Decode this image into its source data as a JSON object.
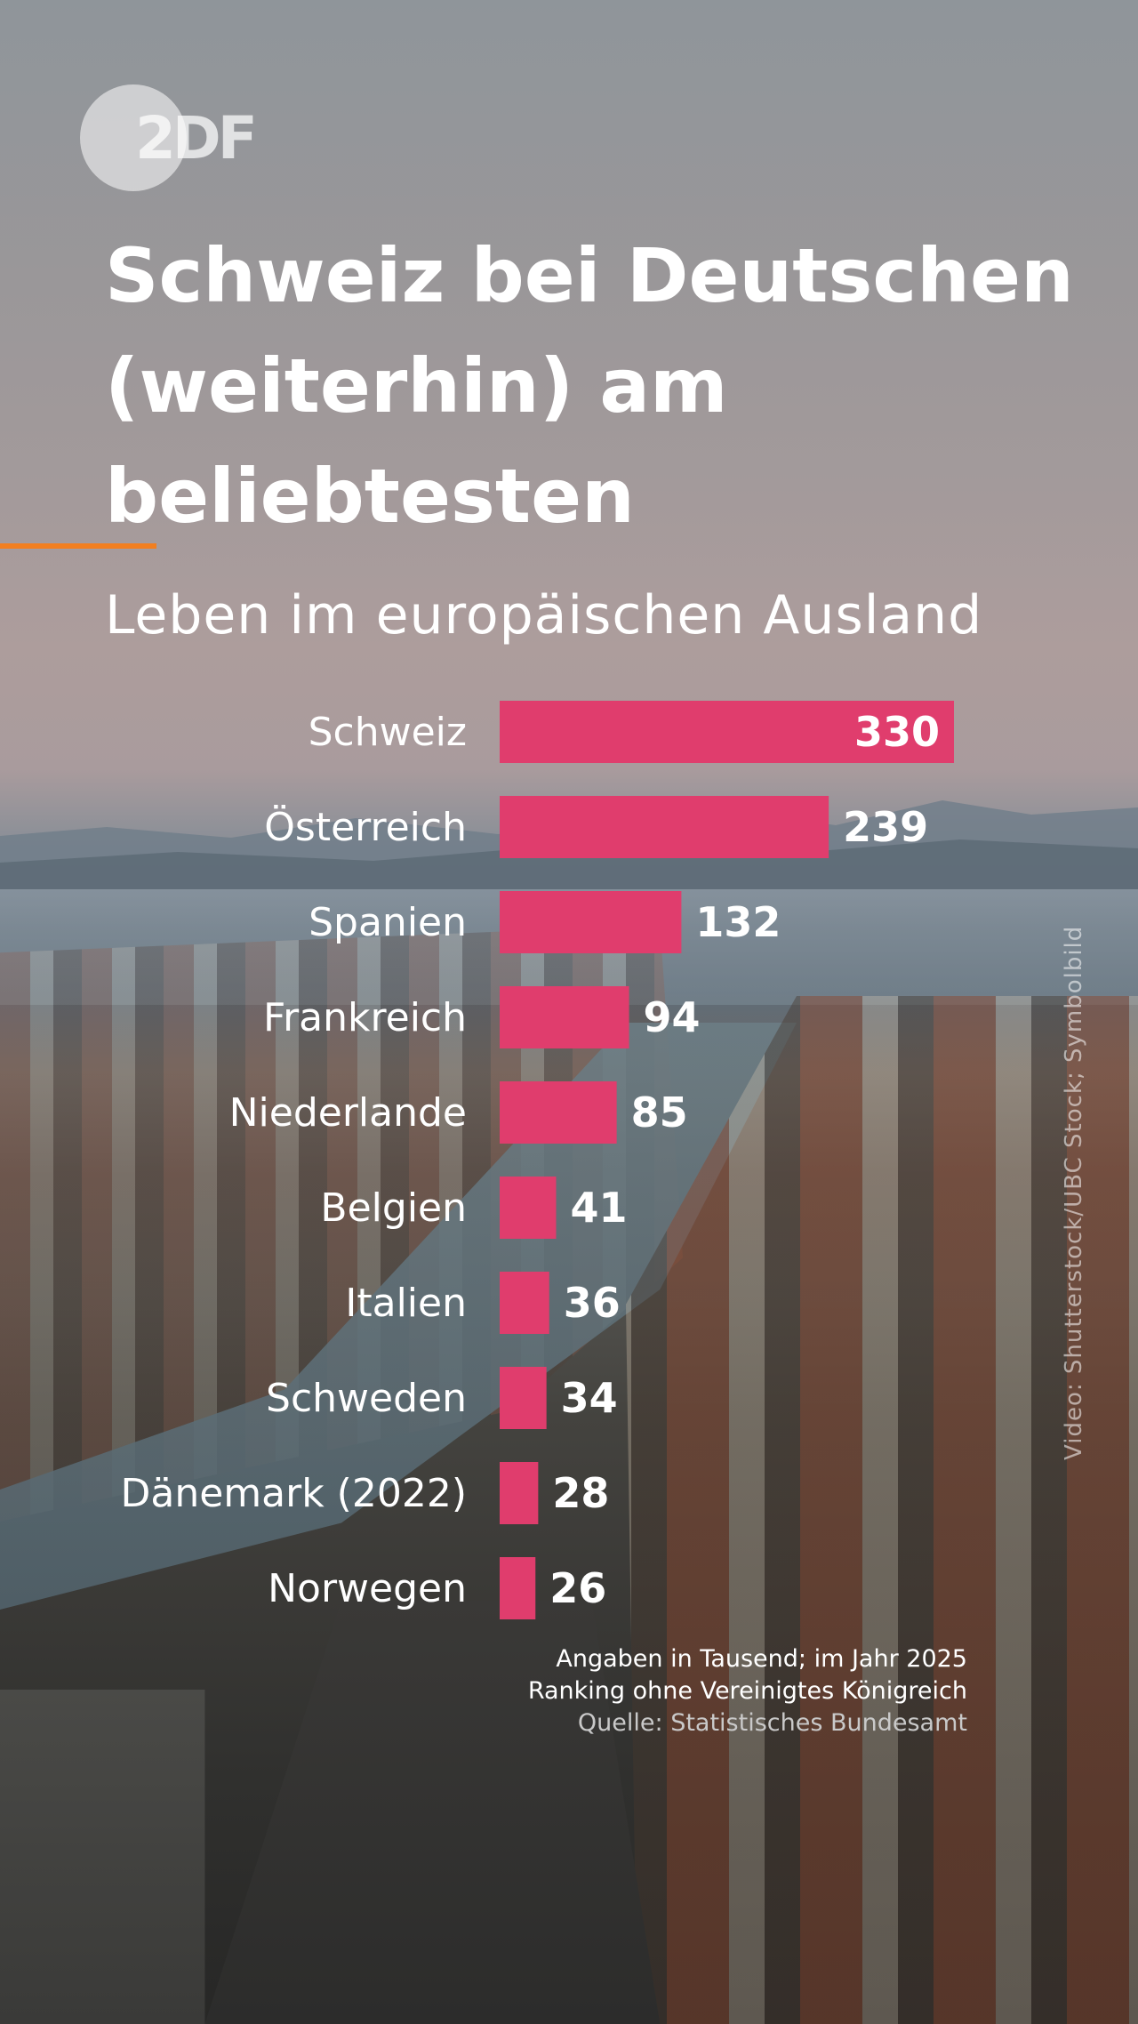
{
  "logo": {
    "text": "2DF"
  },
  "header": {
    "title": "Schweiz bei Deutschen (weiterhin) am beliebtesten",
    "subtitle": "Leben im europäischen Ausland"
  },
  "colors": {
    "bar": "#e03d6d",
    "accent": "#f27f20",
    "text": "#ffffff"
  },
  "chart_data": {
    "type": "bar",
    "orientation": "horizontal",
    "categories": [
      "Schweiz",
      "Österreich",
      "Spanien",
      "Frankreich",
      "Niederlande",
      "Belgien",
      "Italien",
      "Schweden",
      "Dänemark (2022)",
      "Norwegen"
    ],
    "values": [
      330,
      239,
      132,
      94,
      85,
      41,
      36,
      34,
      28,
      26
    ],
    "title": "Leben im europäischen Ausland",
    "xlim": [
      0,
      330
    ],
    "grid": false,
    "legend": "none"
  },
  "notes": {
    "line1": "Angaben in Tausend; im Jahr 2025",
    "line2": "Ranking ohne Vereinigtes Königreich",
    "source": "Quelle: Statistisches Bundesamt"
  },
  "credit": "Video: Shutterstock/UBC Stock; Symbolbild"
}
